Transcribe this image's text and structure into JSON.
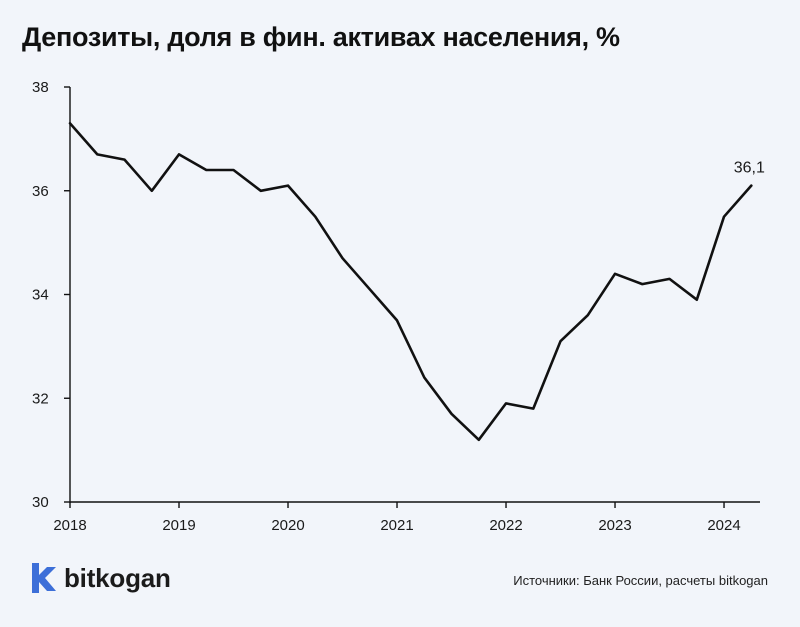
{
  "header": {
    "title": "Депозиты, доля в фин. активах населения, %"
  },
  "footer": {
    "brand": "bitkogan",
    "source": "Источники: Банк России, расчеты bitkogan"
  },
  "colors": {
    "line": "#111111",
    "axis": "#111111",
    "background": "#f2f5fa",
    "logo": "#3d6fd8"
  },
  "chart_data": {
    "type": "line",
    "title": "Депозиты, доля в фин. активах населения, %",
    "xlabel": "",
    "ylabel": "",
    "xlim": [
      2018,
      2024.33
    ],
    "ylim": [
      30,
      38
    ],
    "y_ticks": [
      30,
      32,
      34,
      36,
      38
    ],
    "x_ticks": [
      2018,
      2019,
      2020,
      2021,
      2022,
      2023,
      2024
    ],
    "grid": false,
    "legend": "none",
    "end_label": "36,1",
    "series": [
      {
        "x": [
          2018.0,
          2018.25,
          2018.5,
          2018.75,
          2019.0,
          2019.25,
          2019.5,
          2019.75,
          2020.0,
          2020.25,
          2020.5,
          2020.75,
          2021.0,
          2021.25,
          2021.5,
          2021.75,
          2022.0,
          2022.25,
          2022.5,
          2022.75,
          2023.0,
          2023.25,
          2023.5,
          2023.75,
          2024.0,
          2024.25
        ],
        "values": [
          37.3,
          36.7,
          36.6,
          36.0,
          36.7,
          36.4,
          36.4,
          36.0,
          36.1,
          35.5,
          34.7,
          34.1,
          33.5,
          32.4,
          31.7,
          31.2,
          31.9,
          31.8,
          33.1,
          33.6,
          34.4,
          34.2,
          34.3,
          33.9,
          35.5,
          36.1
        ]
      }
    ]
  }
}
